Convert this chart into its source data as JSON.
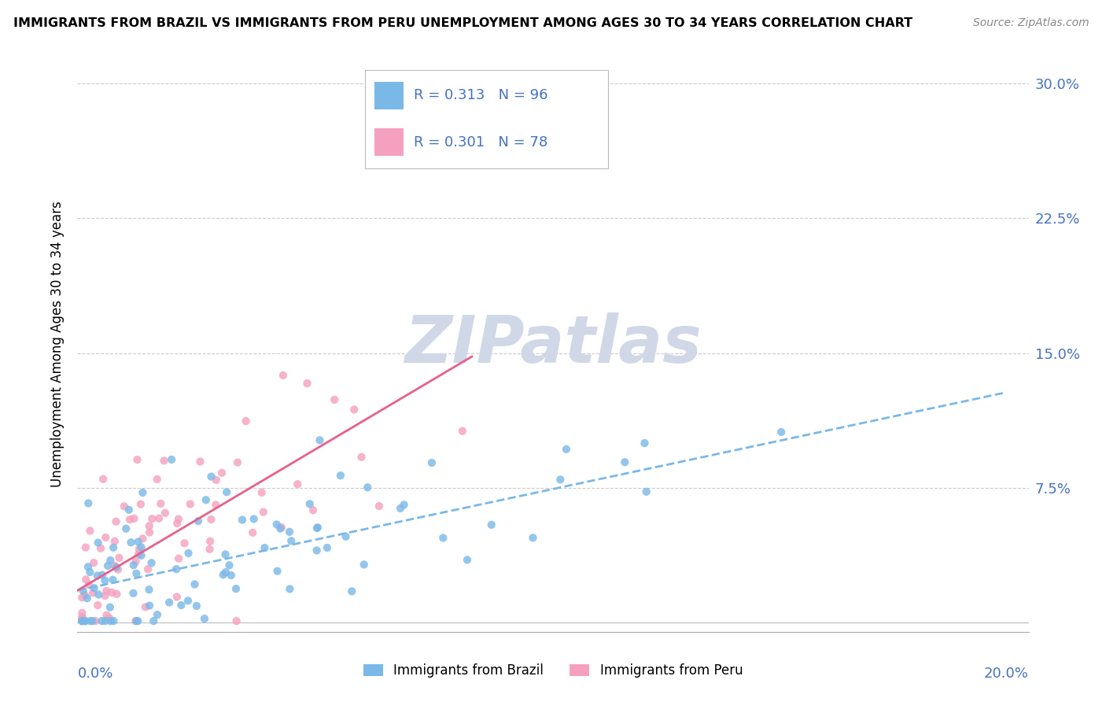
{
  "title": "IMMIGRANTS FROM BRAZIL VS IMMIGRANTS FROM PERU UNEMPLOYMENT AMONG AGES 30 TO 34 YEARS CORRELATION CHART",
  "source": "Source: ZipAtlas.com",
  "ylabel": "Unemployment Among Ages 30 to 34 years",
  "ytick_vals": [
    0.0,
    0.075,
    0.15,
    0.225,
    0.3
  ],
  "ytick_labels": [
    "",
    "7.5%",
    "15.0%",
    "22.5%",
    "30.0%"
  ],
  "xlim": [
    0.0,
    0.205
  ],
  "ylim": [
    -0.005,
    0.315
  ],
  "brazil_R": 0.313,
  "brazil_N": 96,
  "peru_R": 0.301,
  "peru_N": 78,
  "brazil_color": "#7ab8e8",
  "peru_color": "#f4a0be",
  "brazil_line_color": "#7ab8e8",
  "peru_line_color": "#e8608a",
  "brazil_trend": [
    0.0,
    0.2,
    0.018,
    0.128
  ],
  "peru_trend": [
    0.0,
    0.085,
    0.018,
    0.148
  ],
  "watermark_text": "ZIPatlas",
  "watermark_color": "#d0d8e8",
  "legend_brazil_text": "R = 0.313   N = 96",
  "legend_peru_text": "R = 0.301   N = 78",
  "legend_color": "#4472c4",
  "bottom_legend_brazil": "Immigrants from Brazil",
  "bottom_legend_peru": "Immigrants from Peru"
}
